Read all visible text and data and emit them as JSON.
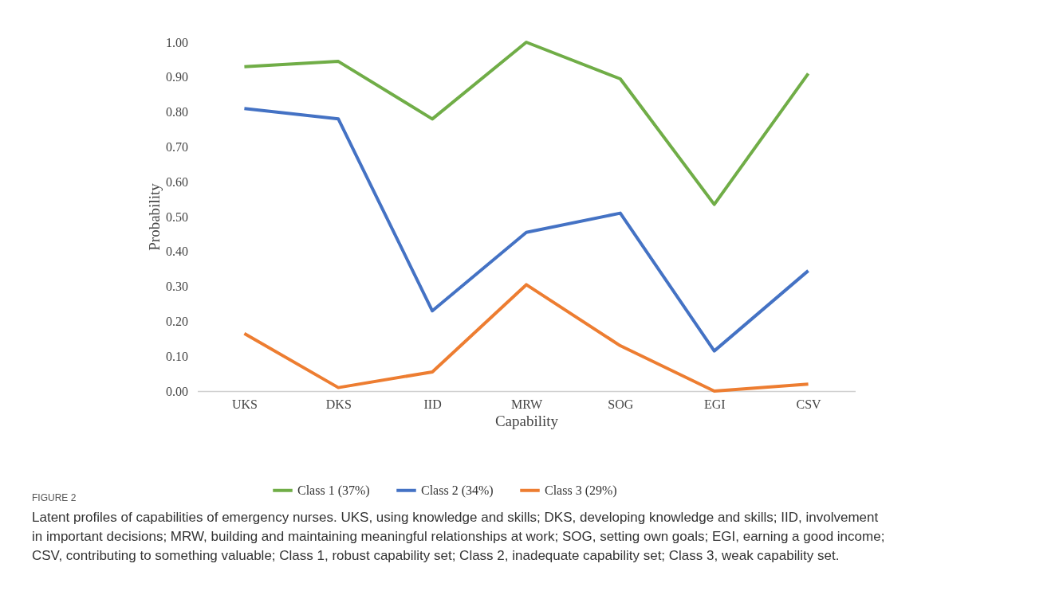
{
  "chart_data": {
    "type": "line",
    "categories": [
      "UKS",
      "DKS",
      "IID",
      "MRW",
      "SOG",
      "EGI",
      "CSV"
    ],
    "xlabel": "Capability",
    "ylabel": "Probability",
    "ylim": [
      0,
      1
    ],
    "yticks": [
      {
        "value": 0,
        "label": "0.00"
      },
      {
        "value": 0.1,
        "label": "0.10"
      },
      {
        "value": 0.2,
        "label": "0.20"
      },
      {
        "value": 0.3,
        "label": "0.30"
      },
      {
        "value": 0.4,
        "label": "0.40"
      },
      {
        "value": 0.5,
        "label": "0.50"
      },
      {
        "value": 0.6,
        "label": "0.60"
      },
      {
        "value": 0.7,
        "label": "0.70"
      },
      {
        "value": 0.8,
        "label": "0.80"
      },
      {
        "value": 0.9,
        "label": "0.90"
      },
      {
        "value": 1,
        "label": "1.00"
      }
    ],
    "series": [
      {
        "name": "Class 1 (37%)",
        "color": "#70ad47",
        "values": [
          0.93,
          0.945,
          0.78,
          1.0,
          0.895,
          0.535,
          0.91
        ]
      },
      {
        "name": "Class 2 (34%)",
        "color": "#4472c4",
        "values": [
          0.81,
          0.78,
          0.23,
          0.455,
          0.51,
          0.115,
          0.345
        ]
      },
      {
        "name": "Class 3 (29%)",
        "color": "#ed7d31",
        "values": [
          0.165,
          0.01,
          0.055,
          0.305,
          0.13,
          0.0,
          0.02
        ]
      }
    ],
    "legend": "bottom",
    "grid": false,
    "line_style": "solid",
    "annotations": [
      "FIGURE 2",
      "Latent profiles of capabilities of emergency nurses. UKS, using knowledge and skills; DKS, developing knowledge and skills; IID, involvement in important decisions; MRW, building and maintaining meaningful relationships at work; SOG, setting own goals; EGI, earning a good income; CSV, contributing to something valuable; Class 1, robust capability set; Class 2, inadequate capability set; Class 3, weak capability set."
    ]
  }
}
